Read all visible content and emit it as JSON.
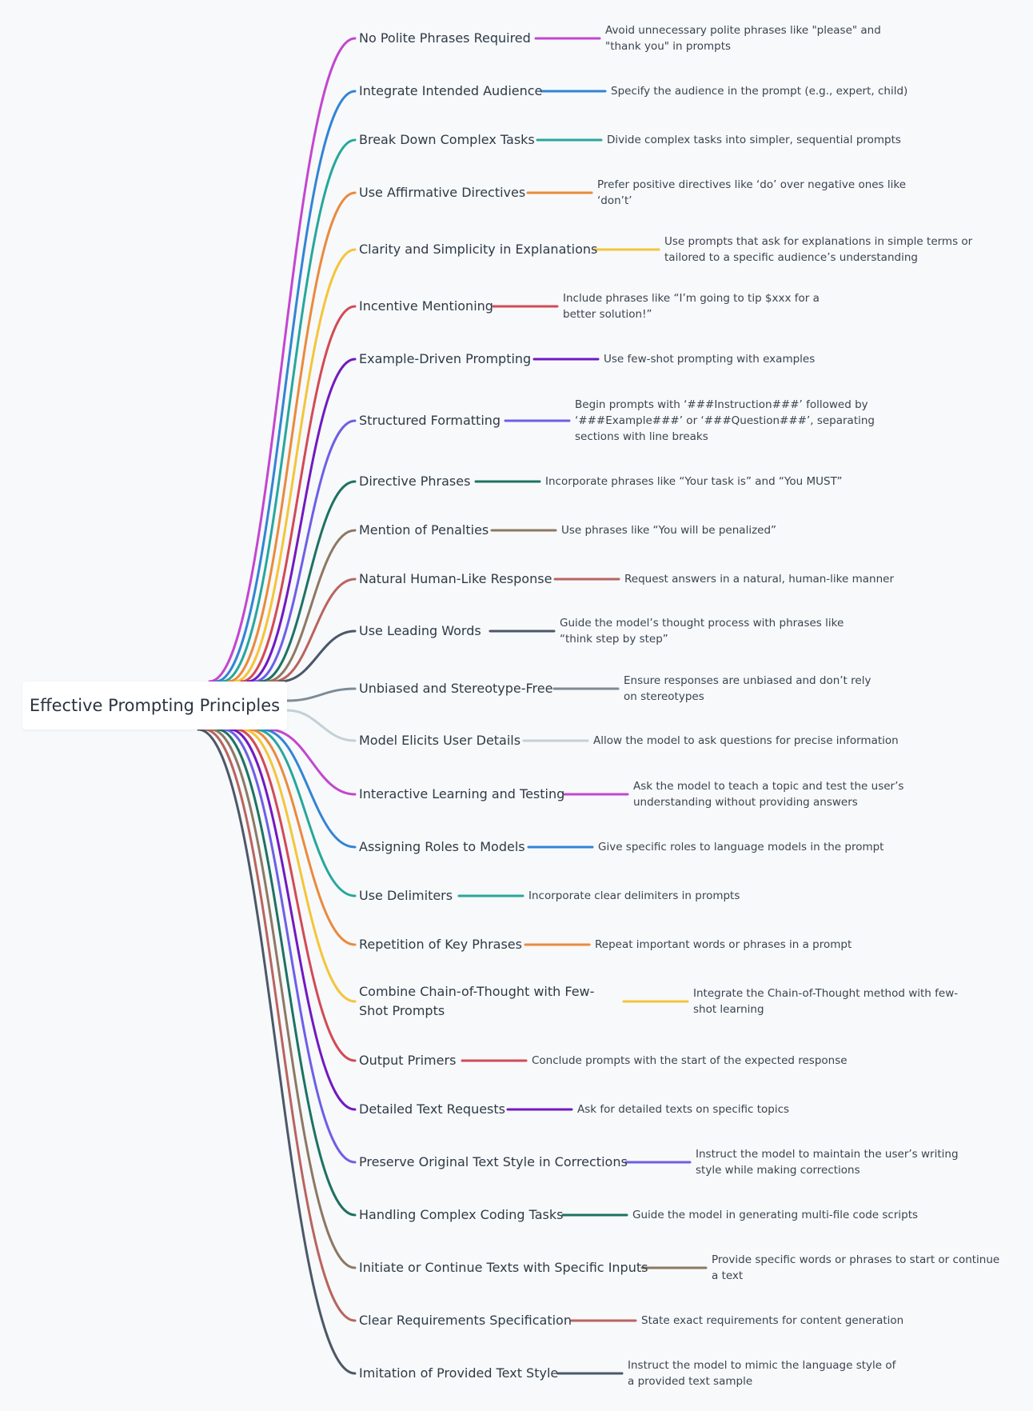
{
  "root": {
    "label": "Effective Prompting Principles"
  },
  "branches": [
    {
      "label": "No Polite Phrases Required",
      "detail": "Avoid unnecessary polite phrases like \"please\" and \"thank you\" in prompts",
      "color": "#c346cf"
    },
    {
      "label": "Integrate Intended Audience",
      "detail": "Specify the audience in the prompt (e.g., expert, child)",
      "color": "#3384d4"
    },
    {
      "label": "Break Down Complex Tasks",
      "detail": "Divide complex tasks into simpler, sequential prompts",
      "color": "#27a79b"
    },
    {
      "label": "Use Affirmative Directives",
      "detail": "Prefer positive directives like ‘do’ over negative ones like ‘don’t’",
      "color": "#ea8a3c"
    },
    {
      "label": "Clarity and Simplicity in Explanations",
      "detail": "Use prompts that ask for explanations in simple terms or tailored to a specific audience’s understanding",
      "color": "#f4c53a"
    },
    {
      "label": "Incentive Mentioning",
      "detail": "Include phrases like “I’m going to tip $xxx for a better solution!”",
      "color": "#d24a55"
    },
    {
      "label": "Example-Driven Prompting",
      "detail": "Use few-shot prompting with examples",
      "color": "#7219bf"
    },
    {
      "label": "Structured Formatting",
      "detail": "Begin prompts with ‘###Instruction###’ followed by ‘###Example###’ or ‘###Question###’, separating sections with line breaks",
      "color": "#6d5fe6"
    },
    {
      "label": "Directive Phrases",
      "detail": "Incorporate phrases like “Your task is” and “You MUST”",
      "color": "#1e7262"
    },
    {
      "label": "Mention of Penalties",
      "detail": "Use phrases like “You will be penalized”",
      "color": "#8d7862"
    },
    {
      "label": "Natural Human-Like Response",
      "detail": "Request answers in a natural, human-like manner",
      "color": "#b9645e"
    },
    {
      "label": "Use Leading Words",
      "detail": "Guide the model’s thought process with phrases like “think step by step”",
      "color": "#4c5869"
    },
    {
      "label": "Unbiased and Stereotype-Free",
      "detail": "Ensure responses are unbiased and don’t rely on stereotypes",
      "color": "#7e8b96"
    },
    {
      "label": "Model Elicits User Details",
      "detail": "Allow the model to ask questions for precise information",
      "color": "#c4d0d6"
    },
    {
      "label": "Interactive Learning and Testing",
      "detail": "Ask the model to teach a topic and test the user’s understanding without providing answers",
      "color": "#c346cf"
    },
    {
      "label": "Assigning Roles to Models",
      "detail": "Give specific roles to language models in the prompt",
      "color": "#3384d4"
    },
    {
      "label": "Use Delimiters",
      "detail": "Incorporate clear delimiters in prompts",
      "color": "#27a79b"
    },
    {
      "label": "Repetition of Key Phrases",
      "detail": "Repeat important words or phrases in a prompt",
      "color": "#ea8a3c"
    },
    {
      "label": "Combine Chain-of-Thought with Few-Shot Prompts",
      "detail": "Integrate the Chain-of-Thought method with few-shot learning",
      "color": "#f4c53a"
    },
    {
      "label": "Output Primers",
      "detail": "Conclude prompts with the start of the expected response",
      "color": "#d24a55"
    },
    {
      "label": "Detailed Text Requests",
      "detail": "Ask for detailed texts on specific topics",
      "color": "#7219bf"
    },
    {
      "label": "Preserve Original Text Style in Corrections",
      "detail": "Instruct the model to maintain the user’s writing style while making corrections",
      "color": "#6d5fe6"
    },
    {
      "label": "Handling Complex Coding Tasks",
      "detail": "Guide the model in generating multi-file code scripts",
      "color": "#1e7262"
    },
    {
      "label": "Initiate or Continue Texts with Specific Inputs",
      "detail": "Provide specific words or phrases to start or continue a text",
      "color": "#8d7862"
    },
    {
      "label": "Clear Requirements Specification",
      "detail": "State exact requirements for content generation",
      "color": "#b9645e"
    },
    {
      "label": "Imitation of Provided Text Style",
      "detail": "Instruct the model to mimic the language style of a provided text sample",
      "color": "#4c5869"
    }
  ]
}
